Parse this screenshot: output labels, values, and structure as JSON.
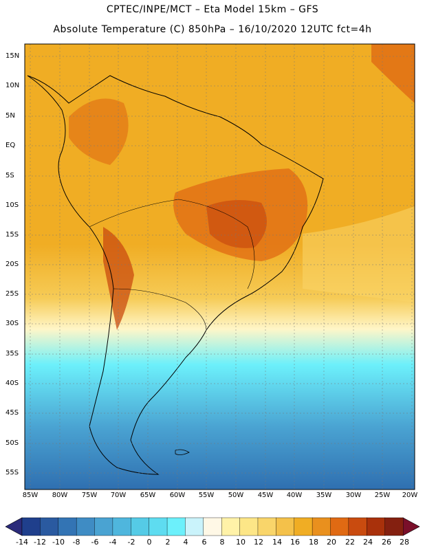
{
  "header": {
    "line1": "CPTEC/INPE/MCT –  Eta Model 15km – GFS",
    "line2": "Absolute Temperature (C) 850hPa – 16/10/2020 12UTC fct=4h"
  },
  "map": {
    "lat_labels": [
      "15N",
      "10N",
      "5N",
      "EQ",
      "5S",
      "10S",
      "15S",
      "20S",
      "25S",
      "30S",
      "35S",
      "40S",
      "45S",
      "50S",
      "55S"
    ],
    "lon_labels": [
      "85W",
      "80W",
      "75W",
      "70W",
      "65W",
      "60W",
      "55W",
      "50W",
      "45W",
      "40W",
      "35W",
      "30W",
      "25W",
      "20W"
    ]
  },
  "colorbar": {
    "labels": [
      "-14",
      "-12",
      "-10",
      "-8",
      "-6",
      "-4",
      "-2",
      "0",
      "2",
      "4",
      "6",
      "8",
      "10",
      "12",
      "14",
      "16",
      "18",
      "20",
      "22",
      "24",
      "26",
      "28"
    ],
    "colors": [
      "#1f3f8c",
      "#2a5aa0",
      "#3374b4",
      "#3f8cc4",
      "#4aa3d2",
      "#4fb6dd",
      "#55cbe6",
      "#5edcf0",
      "#6cf0fb",
      "#caf3fb",
      "#fff8e6",
      "#fff2a8",
      "#fde687",
      "#f9d56a",
      "#f4c14a",
      "#f0ad24",
      "#e9901e",
      "#e06a13",
      "#c94b0f",
      "#a9310b",
      "#842010"
    ],
    "under_color": "#2a2a7a",
    "over_color": "#7a0f2a"
  }
}
